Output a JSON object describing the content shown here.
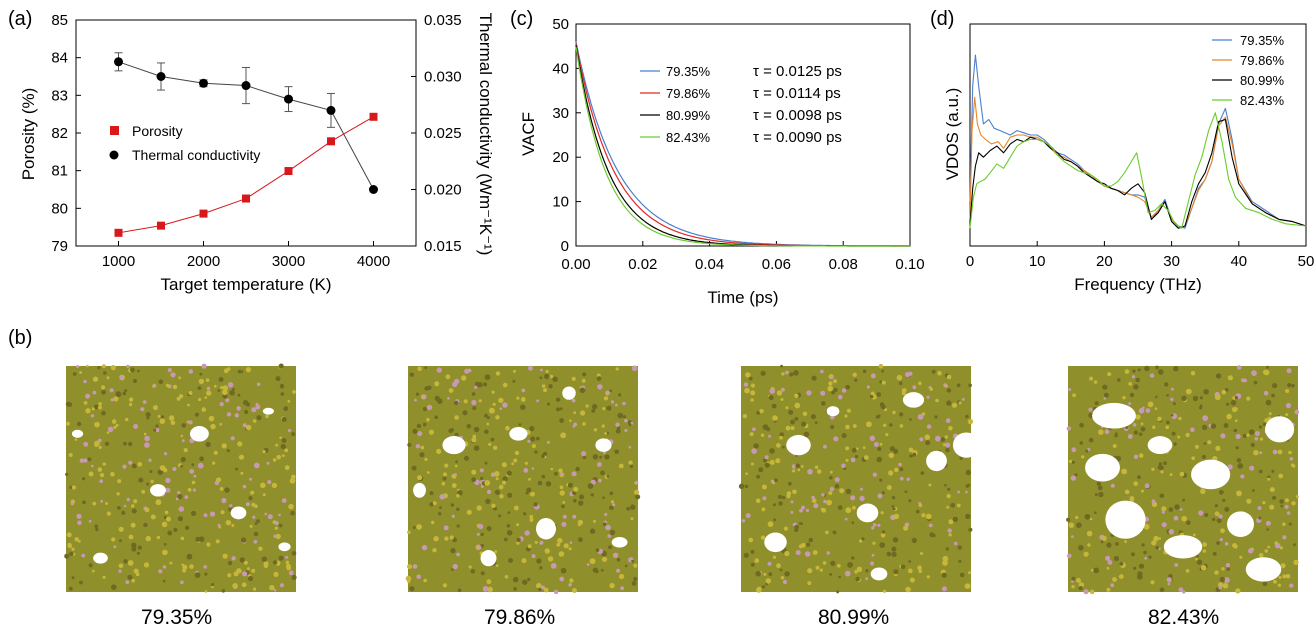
{
  "panel_labels": {
    "a": "(a)",
    "b": "(b)",
    "c": "(c)",
    "d": "(d)"
  },
  "colors": {
    "porosity": "#d7191c",
    "thermal": "#000000",
    "blue": "#4a7fd1",
    "red": "#e3271f",
    "black": "#000000",
    "green": "#6ccc2a",
    "orange": "#e8862a",
    "micro_base": "#8f8f2c",
    "micro_dot": "#c6b73a",
    "micro_pink": "#c79ab4"
  },
  "chart_data": [
    {
      "id": "a",
      "type": "line",
      "xlabel": "Target temperature (K)",
      "ylabel": "Porosity (%)",
      "y2label": "Thermal conductivity (Wm⁻¹K⁻¹)",
      "xlim": [
        500,
        4500
      ],
      "ylim": [
        79,
        85
      ],
      "y2lim": [
        0.015,
        0.035
      ],
      "xticks": [
        1000,
        2000,
        3000,
        4000
      ],
      "yticks": [
        79,
        80,
        81,
        82,
        83,
        84,
        85
      ],
      "y2ticks": [
        "0.015",
        "0.020",
        "0.025",
        "0.030",
        "0.035"
      ],
      "y2tick_values": [
        0.015,
        0.02,
        0.025,
        0.03,
        0.035
      ],
      "legend": [
        "Porosity",
        "Thermal conductivity"
      ],
      "x": [
        1000,
        1500,
        2000,
        2500,
        3000,
        3500,
        4000
      ],
      "series": [
        {
          "name": "Porosity",
          "axis": "left",
          "marker": "square",
          "values": [
            79.35,
            79.54,
            79.86,
            80.26,
            80.99,
            81.78,
            82.43
          ]
        },
        {
          "name": "Thermal conductivity",
          "axis": "right",
          "marker": "circle",
          "values": [
            0.0313,
            0.03,
            0.0294,
            0.0292,
            0.028,
            0.027,
            0.02
          ],
          "errors": [
            0.0008,
            0.0012,
            0.0003,
            0.0016,
            0.0011,
            0.0015,
            0
          ]
        }
      ]
    },
    {
      "id": "c",
      "type": "line",
      "xlabel": "Time (ps)",
      "ylabel": "VACF",
      "xlim": [
        0,
        0.1
      ],
      "ylim": [
        0,
        50
      ],
      "xticks": [
        "0.00",
        "0.02",
        "0.04",
        "0.06",
        "0.08",
        "0.10"
      ],
      "xtick_values": [
        0,
        0.02,
        0.04,
        0.06,
        0.08,
        0.1
      ],
      "yticks": [
        0,
        10,
        20,
        30,
        40,
        50
      ],
      "series": [
        {
          "name": "79.35%",
          "tau_label": "τ = 0.0125 ps",
          "tau": 0.0125,
          "y0": 46
        },
        {
          "name": "79.86%",
          "tau_label": "τ = 0.0114 ps",
          "tau": 0.0114,
          "y0": 45.6
        },
        {
          "name": "80.99%",
          "tau_label": "τ = 0.0098 ps",
          "tau": 0.0098,
          "y0": 45.2
        },
        {
          "name": "82.43%",
          "tau_label": "τ = 0.0090 ps",
          "tau": 0.009,
          "y0": 44.8
        }
      ]
    },
    {
      "id": "d",
      "type": "line",
      "xlabel": "Frequency (THz)",
      "ylabel": "VDOS (a.u.)",
      "xlim": [
        0,
        50
      ],
      "ylim": [
        0,
        1
      ],
      "xticks": [
        0,
        10,
        20,
        30,
        40,
        50
      ],
      "legend": [
        "79.35%",
        "79.86%",
        "80.99%",
        "82.43%"
      ],
      "series": [
        {
          "name": "79.35%",
          "x": [
            0,
            0.4,
            0.8,
            1.3,
            2,
            2.8,
            3.6,
            4.5,
            6,
            7,
            8,
            9,
            10,
            11,
            12,
            13,
            14,
            15,
            16,
            17,
            18,
            19,
            20,
            21,
            22,
            23,
            24,
            25,
            26,
            27,
            28,
            29,
            30,
            31,
            32,
            33,
            34,
            35,
            36,
            37,
            38,
            39,
            40,
            42,
            44,
            46,
            48,
            50
          ],
          "y": [
            0.2,
            0.72,
            0.86,
            0.72,
            0.55,
            0.57,
            0.53,
            0.52,
            0.5,
            0.52,
            0.51,
            0.5,
            0.5,
            0.48,
            0.45,
            0.42,
            0.41,
            0.39,
            0.37,
            0.34,
            0.31,
            0.29,
            0.27,
            0.26,
            0.25,
            0.24,
            0.23,
            0.23,
            0.22,
            0.12,
            0.16,
            0.21,
            0.12,
            0.09,
            0.08,
            0.17,
            0.26,
            0.3,
            0.38,
            0.55,
            0.62,
            0.48,
            0.3,
            0.2,
            0.16,
            0.12,
            0.11,
            0.09
          ]
        },
        {
          "name": "79.86%",
          "x": [
            0,
            0.3,
            0.7,
            1.1,
            1.6,
            2.3,
            3.2,
            4.2,
            5,
            6,
            7,
            8,
            9,
            10,
            11,
            12,
            13,
            14,
            15,
            16,
            17,
            18,
            19,
            20,
            21,
            22,
            23,
            24,
            25,
            26,
            27,
            28,
            29,
            30,
            31,
            32,
            33,
            34,
            35,
            36,
            37,
            38,
            39,
            40,
            42,
            44,
            46,
            48,
            50
          ],
          "y": [
            0.12,
            0.52,
            0.67,
            0.55,
            0.5,
            0.48,
            0.46,
            0.47,
            0.44,
            0.49,
            0.5,
            0.5,
            0.49,
            0.49,
            0.47,
            0.44,
            0.41,
            0.4,
            0.38,
            0.36,
            0.34,
            0.32,
            0.29,
            0.27,
            0.26,
            0.25,
            0.24,
            0.23,
            0.22,
            0.2,
            0.13,
            0.16,
            0.2,
            0.12,
            0.08,
            0.09,
            0.17,
            0.25,
            0.3,
            0.38,
            0.54,
            0.58,
            0.46,
            0.3,
            0.19,
            0.15,
            0.12,
            0.11,
            0.09
          ]
        },
        {
          "name": "80.99%",
          "x": [
            0,
            0.4,
            0.8,
            1.3,
            2,
            3,
            4,
            5,
            6,
            7,
            8,
            9,
            10,
            11,
            12,
            13,
            14,
            15,
            16,
            17,
            18,
            19,
            20,
            21,
            22,
            23,
            24,
            25,
            26,
            27,
            28,
            29,
            30,
            31,
            32,
            33,
            34,
            35,
            36,
            37,
            38,
            39,
            40,
            42,
            44,
            46,
            48,
            50
          ],
          "y": [
            0.1,
            0.26,
            0.36,
            0.42,
            0.4,
            0.43,
            0.45,
            0.42,
            0.46,
            0.48,
            0.47,
            0.49,
            0.48,
            0.47,
            0.44,
            0.42,
            0.39,
            0.38,
            0.36,
            0.33,
            0.31,
            0.29,
            0.28,
            0.26,
            0.25,
            0.23,
            0.26,
            0.28,
            0.24,
            0.12,
            0.15,
            0.2,
            0.11,
            0.08,
            0.09,
            0.2,
            0.28,
            0.33,
            0.42,
            0.56,
            0.57,
            0.4,
            0.28,
            0.19,
            0.15,
            0.12,
            0.11,
            0.09
          ]
        },
        {
          "name": "82.43%",
          "x": [
            0,
            0.5,
            1,
            1.5,
            2.2,
            3,
            4,
            5,
            6,
            7,
            8,
            9,
            10,
            11,
            12,
            13,
            14,
            15,
            16,
            17,
            18,
            19,
            20,
            21,
            22,
            23,
            24,
            24.8,
            25.6,
            26.5,
            27.5,
            28.5,
            29.5,
            30.5,
            31.5,
            32.5,
            33.5,
            34.5,
            35.5,
            36.5,
            37.5,
            38.5,
            39.5,
            41,
            43,
            45,
            47,
            50
          ],
          "y": [
            0.08,
            0.22,
            0.28,
            0.29,
            0.3,
            0.33,
            0.37,
            0.35,
            0.4,
            0.45,
            0.47,
            0.48,
            0.48,
            0.47,
            0.45,
            0.41,
            0.38,
            0.36,
            0.34,
            0.33,
            0.32,
            0.3,
            0.27,
            0.27,
            0.29,
            0.33,
            0.38,
            0.42,
            0.3,
            0.15,
            0.16,
            0.19,
            0.16,
            0.1,
            0.08,
            0.2,
            0.32,
            0.4,
            0.52,
            0.6,
            0.47,
            0.3,
            0.22,
            0.17,
            0.15,
            0.12,
            0.1,
            0.09
          ]
        }
      ]
    }
  ],
  "micrographs": [
    {
      "label": "79.35%"
    },
    {
      "label": "79.86%"
    },
    {
      "label": "80.99%"
    },
    {
      "label": "82.43%"
    }
  ]
}
